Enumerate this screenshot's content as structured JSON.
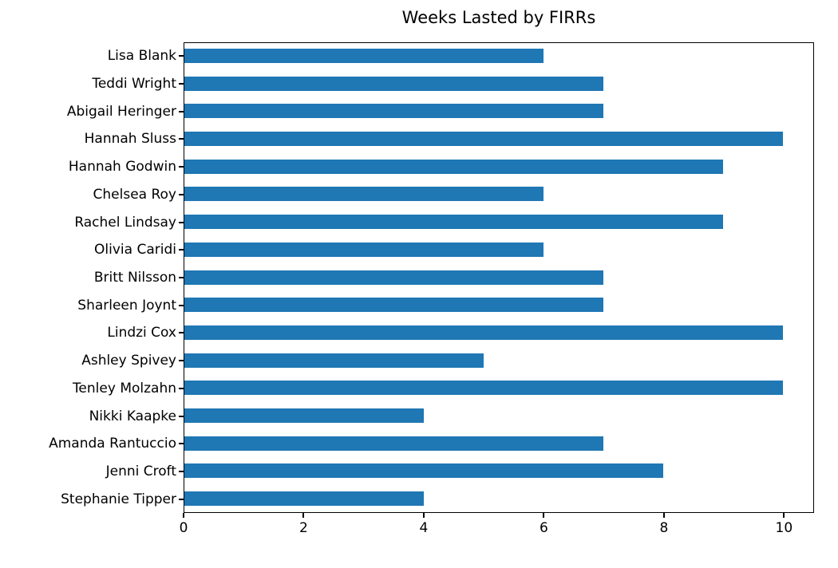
{
  "chart_data": {
    "type": "bar",
    "orientation": "horizontal",
    "title": "Weeks Lasted by FIRRs",
    "categories": [
      "Lisa Blank",
      "Teddi Wright",
      "Abigail Heringer",
      "Hannah Sluss",
      "Hannah Godwin",
      "Chelsea Roy",
      "Rachel Lindsay",
      "Olivia Caridi",
      "Britt Nilsson",
      "Sharleen Joynt",
      "Lindzi Cox",
      "Ashley Spivey",
      "Tenley Molzahn",
      "Nikki Kaapke",
      "Amanda Rantuccio",
      "Jenni Croft",
      "Stephanie Tipper"
    ],
    "values": [
      6,
      7,
      7,
      10,
      9,
      6,
      9,
      6,
      7,
      7,
      10,
      5,
      10,
      4,
      7,
      8,
      4
    ],
    "xlabel": "",
    "ylabel": "",
    "xlim": [
      0,
      10.5
    ],
    "xticks": [
      0,
      2,
      4,
      6,
      8,
      10
    ],
    "grid": false,
    "legend": null,
    "bar_color": "#1f77b4",
    "axis_color": "#000000",
    "background_color": "#ffffff"
  }
}
